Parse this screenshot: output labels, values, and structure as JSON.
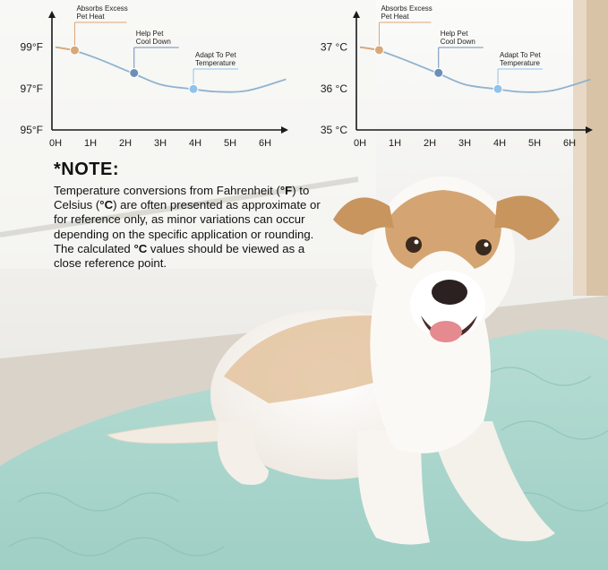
{
  "colors": {
    "axis": "#1a1a1a",
    "curve": "#8fb3cf",
    "heat": "#d9a87a",
    "cool": "#6b8fb8",
    "adapt": "#8fc3ec",
    "mat": "#a9d5cc"
  },
  "chart_data": [
    {
      "type": "line",
      "x_ticks": [
        "0H",
        "1H",
        "2H",
        "3H",
        "4H",
        "5H",
        "6H"
      ],
      "y_ticks": [
        {
          "value": 99,
          "label": "99°F"
        },
        {
          "value": 97,
          "label": "97°F"
        },
        {
          "value": 95,
          "label": "95°F"
        }
      ],
      "ylim": [
        95,
        100.5
      ],
      "xlim": [
        0,
        6.7
      ],
      "series": [
        {
          "x": [
            0,
            0.5,
            1.2,
            2.2,
            3.0,
            3.9,
            4.6,
            5.5,
            6.6
          ],
          "y": [
            99.0,
            98.85,
            98.45,
            97.75,
            97.2,
            96.98,
            96.85,
            96.9,
            97.45
          ]
        }
      ],
      "markers": [
        {
          "x": 0.55,
          "y": 98.85,
          "label": [
            "Absorbs Excess",
            "Pet Heat"
          ],
          "color_key": "heat"
        },
        {
          "x": 2.25,
          "y": 97.75,
          "label": [
            "Help Pet",
            "Cool Down"
          ],
          "color_key": "cool"
        },
        {
          "x": 3.95,
          "y": 96.98,
          "label": [
            "Adapt To Pet",
            "Temperature"
          ],
          "color_key": "adapt"
        }
      ]
    },
    {
      "type": "line",
      "x_ticks": [
        "0H",
        "1H",
        "2H",
        "3H",
        "4H",
        "5H",
        "6H"
      ],
      "y_ticks": [
        {
          "value": 37,
          "label": "37 °C"
        },
        {
          "value": 36,
          "label": "36 °C"
        },
        {
          "value": 35,
          "label": "35 °C"
        }
      ],
      "ylim": [
        35,
        37.75
      ],
      "xlim": [
        0,
        6.7
      ],
      "series": [
        {
          "x": [
            0,
            0.5,
            1.2,
            2.2,
            3.0,
            3.9,
            4.6,
            5.5,
            6.6
          ],
          "y": [
            37.0,
            36.93,
            36.72,
            36.38,
            36.1,
            35.99,
            35.92,
            35.95,
            36.22
          ]
        }
      ],
      "markers": [
        {
          "x": 0.55,
          "y": 36.93,
          "label": [
            "Absorbs Excess",
            "Pet Heat"
          ],
          "color_key": "heat"
        },
        {
          "x": 2.25,
          "y": 36.38,
          "label": [
            "Help Pet",
            "Cool Down"
          ],
          "color_key": "cool"
        },
        {
          "x": 3.95,
          "y": 35.99,
          "label": [
            "Adapt To Pet",
            "Temperature"
          ],
          "color_key": "adapt"
        }
      ]
    }
  ],
  "note": {
    "title": "*NOTE:",
    "parts": [
      {
        "text": "Temperature conversions from Fahrenheit (",
        "bold": false
      },
      {
        "text": "°F",
        "bold": true
      },
      {
        "text": ") to Celsius (",
        "bold": false
      },
      {
        "text": "°C",
        "bold": true
      },
      {
        "text": ") are often presented as approximate or for reference only, as minor variations can occur depending on the specific application or rounding. The calculated ",
        "bold": false
      },
      {
        "text": "°C",
        "bold": true
      },
      {
        "text": " values should be viewed as a close reference point.",
        "bold": false
      }
    ]
  }
}
